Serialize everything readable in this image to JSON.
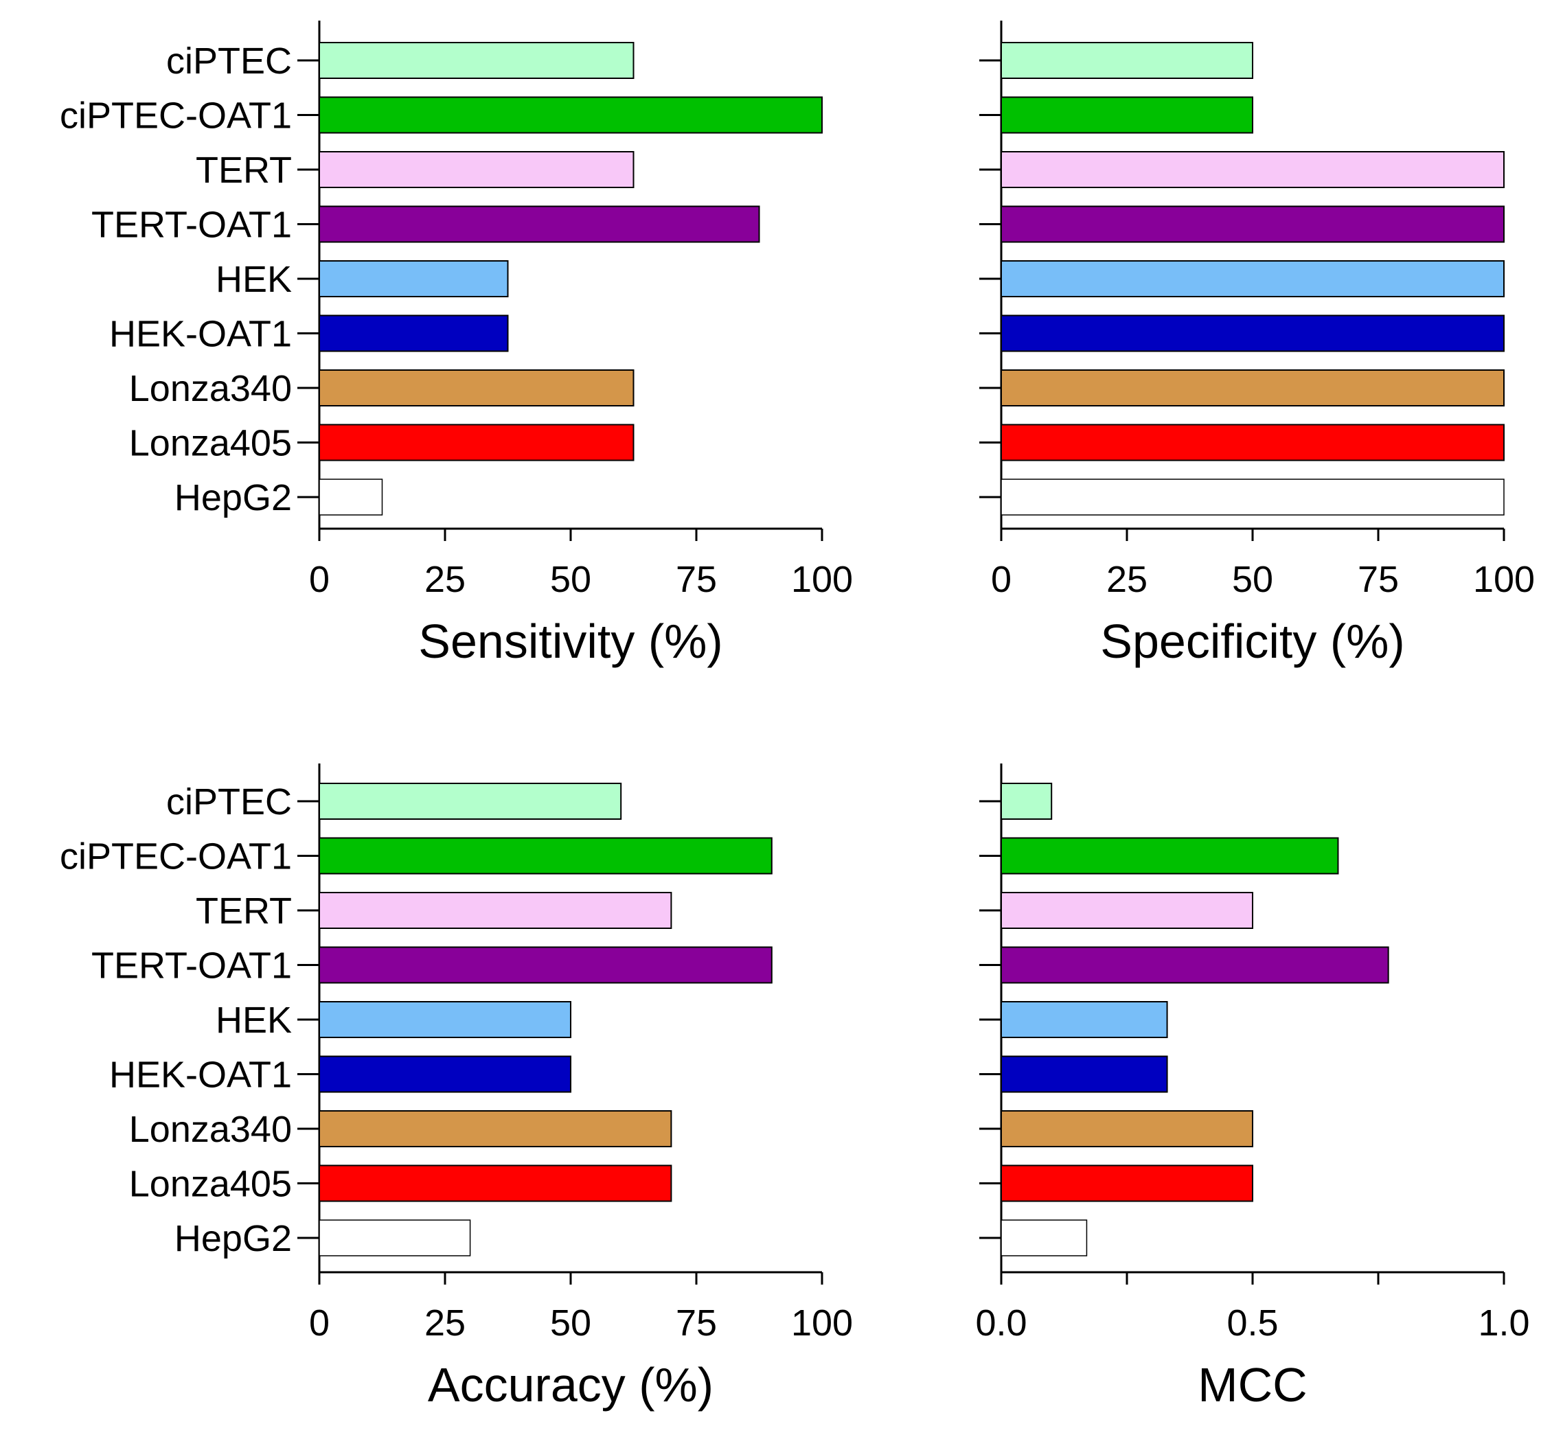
{
  "chart_data": [
    {
      "type": "bar",
      "orientation": "horizontal",
      "title": "",
      "xlabel": "Sensitivity (%)",
      "ylabel": "",
      "show_category_labels": true,
      "xlim": [
        0,
        100
      ],
      "xticks": [
        0,
        25,
        50,
        75,
        100
      ],
      "xtick_labels": [
        "0",
        "25",
        "50",
        "75",
        "100"
      ],
      "grid": false,
      "categories": [
        "ciPTEC",
        "ciPTEC-OAT1",
        "TERT",
        "TERT-OAT1",
        "HEK",
        "HEK-OAT1",
        "Lonza340",
        "Lonza405",
        "HepG2"
      ],
      "values": [
        62.5,
        100,
        62.5,
        87.5,
        37.5,
        37.5,
        62.5,
        62.5,
        12.5
      ]
    },
    {
      "type": "bar",
      "orientation": "horizontal",
      "title": "",
      "xlabel": "Specificity (%)",
      "ylabel": "",
      "show_category_labels": false,
      "xlim": [
        0,
        100
      ],
      "xticks": [
        0,
        25,
        50,
        75,
        100
      ],
      "xtick_labels": [
        "0",
        "25",
        "50",
        "75",
        "100"
      ],
      "grid": false,
      "categories": [
        "ciPTEC",
        "ciPTEC-OAT1",
        "TERT",
        "TERT-OAT1",
        "HEK",
        "HEK-OAT1",
        "Lonza340",
        "Lonza405",
        "HepG2"
      ],
      "values": [
        50,
        50,
        100,
        100,
        100,
        100,
        100,
        100,
        100
      ]
    },
    {
      "type": "bar",
      "orientation": "horizontal",
      "title": "",
      "xlabel": "Accuracy (%)",
      "ylabel": "",
      "show_category_labels": true,
      "xlim": [
        0,
        100
      ],
      "xticks": [
        0,
        25,
        50,
        75,
        100
      ],
      "xtick_labels": [
        "0",
        "25",
        "50",
        "75",
        "100"
      ],
      "grid": false,
      "categories": [
        "ciPTEC",
        "ciPTEC-OAT1",
        "TERT",
        "TERT-OAT1",
        "HEK",
        "HEK-OAT1",
        "Lonza340",
        "Lonza405",
        "HepG2"
      ],
      "values": [
        60,
        90,
        70,
        90,
        50,
        50,
        70,
        70,
        30
      ]
    },
    {
      "type": "bar",
      "orientation": "horizontal",
      "title": "",
      "xlabel": "MCC",
      "ylabel": "",
      "show_category_labels": false,
      "xlim": [
        0,
        1
      ],
      "xticks": [
        0,
        0.25,
        0.5,
        0.75,
        1.0
      ],
      "xtick_labels": [
        "0.0",
        "",
        "0.5",
        "",
        "1.0"
      ],
      "grid": false,
      "categories": [
        "ciPTEC",
        "ciPTEC-OAT1",
        "TERT",
        "TERT-OAT1",
        "HEK",
        "HEK-OAT1",
        "Lonza340",
        "Lonza405",
        "HepG2"
      ],
      "values": [
        0.1,
        0.67,
        0.5,
        0.77,
        0.33,
        0.33,
        0.5,
        0.5,
        0.17
      ]
    }
  ],
  "category_colors": [
    "#b3ffcc",
    "#00c000",
    "#f8c8f8",
    "#880099",
    "#78bef8",
    "#0000c0",
    "#d4964a",
    "#ff0000",
    "#ffffff"
  ]
}
